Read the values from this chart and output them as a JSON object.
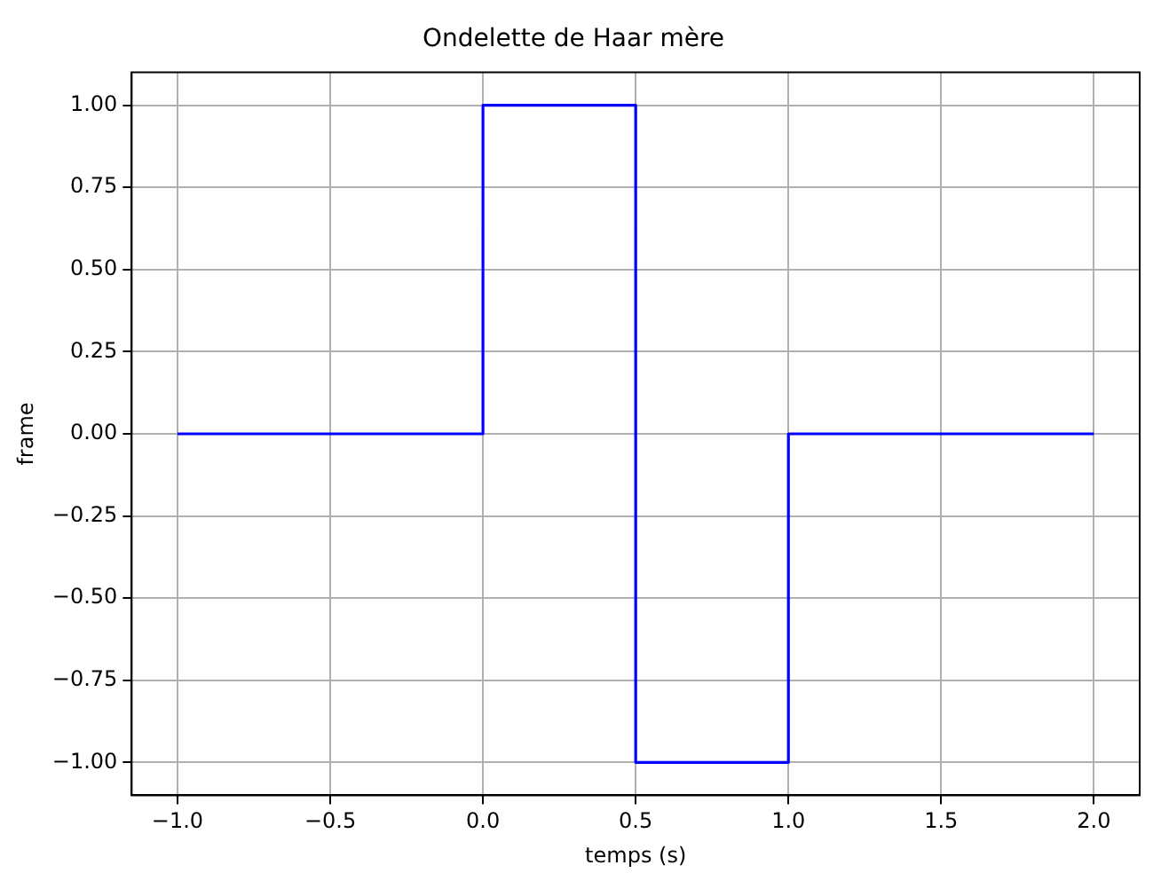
{
  "chart_data": {
    "type": "line",
    "title": "Ondelette de Haar mère",
    "xlabel": "temps (s)",
    "ylabel": "frame",
    "x": [
      -1,
      0,
      0,
      0.5,
      0.5,
      1,
      1,
      2
    ],
    "series": [
      {
        "color": "#0000ff",
        "values": [
          0,
          0,
          1,
          1,
          -1,
          -1,
          0,
          0
        ]
      }
    ],
    "xlim": [
      -1.15,
      2.15
    ],
    "xticks": [
      {
        "value": -1,
        "label": "−1.0"
      },
      {
        "value": -0.5,
        "label": "−0.5"
      },
      {
        "value": 0,
        "label": "0.0"
      },
      {
        "value": 0.5,
        "label": "0.5"
      },
      {
        "value": 1,
        "label": "1.0"
      },
      {
        "value": 1.5,
        "label": "1.5"
      },
      {
        "value": 2,
        "label": "2.0"
      }
    ],
    "ylim": [
      -1.1,
      1.1
    ],
    "yticks": [
      {
        "value": -1,
        "label": "−1.00"
      },
      {
        "value": -0.75,
        "label": "−0.75"
      },
      {
        "value": -0.5,
        "label": "−0.50"
      },
      {
        "value": -0.25,
        "label": "−0.25"
      },
      {
        "value": 0,
        "label": "0.00"
      },
      {
        "value": 0.25,
        "label": "0.25"
      },
      {
        "value": 0.5,
        "label": "0.50"
      },
      {
        "value": 0.75,
        "label": "0.75"
      },
      {
        "value": 1,
        "label": "1.00"
      }
    ],
    "grid": true,
    "legend": false,
    "marker": "none",
    "line_style": "solid"
  }
}
